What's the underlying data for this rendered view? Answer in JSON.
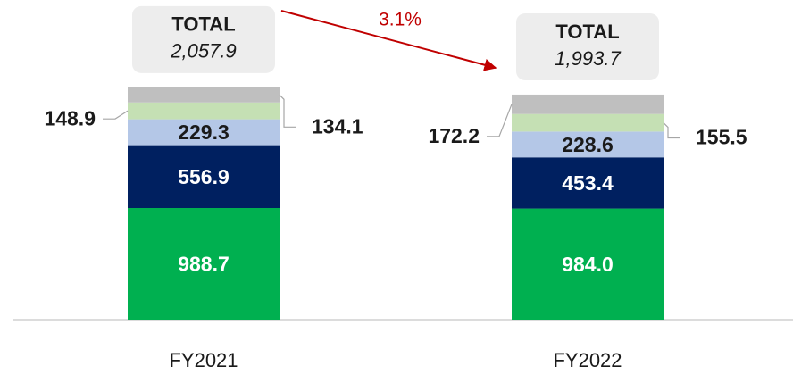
{
  "chart_data": {
    "type": "stacked-bar",
    "categories": [
      "FY2021",
      "FY2022"
    ],
    "series": [
      {
        "color": "#00b050",
        "values": [
          988.7,
          984.0
        ],
        "value_labels": [
          "988.7",
          "984.0"
        ]
      },
      {
        "color": "#002060",
        "values": [
          556.9,
          453.4
        ]
      },
      {
        "color": "#b4c7e7",
        "values": [
          229.3,
          228.6
        ]
      },
      {
        "color": "#c5e0b4",
        "values": [
          148.9,
          155.5
        ]
      },
      {
        "color": "#bfbfbf",
        "values": [
          134.1,
          172.2
        ]
      }
    ],
    "totals": {
      "label": "TOTAL",
      "values": [
        2057.9,
        1993.7
      ],
      "value_labels": [
        "2,057.9",
        "1,993.7"
      ]
    },
    "change": {
      "text": "3.1%",
      "color": "#c00000"
    },
    "ylim": [
      0,
      2800
    ]
  }
}
